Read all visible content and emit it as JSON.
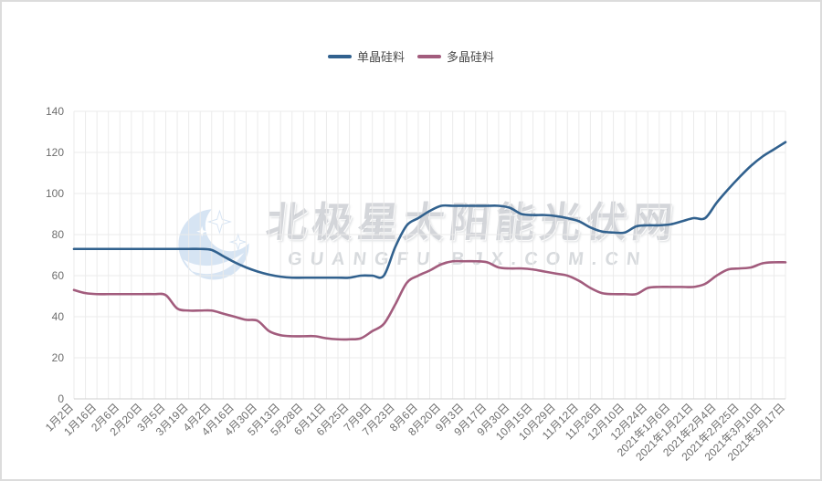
{
  "page": {
    "background": "#ffffff",
    "border_color": "#dcdcdc"
  },
  "legend": {
    "items": [
      {
        "label": "单晶硅料",
        "color": "#31618e"
      },
      {
        "label": "多晶硅料",
        "color": "#a25c7d"
      }
    ]
  },
  "watermark": {
    "title": "北极星太阳能光伏网",
    "subtitle": "GUANGFU.BJX.COM.CN",
    "logo_color": "#c9dbf0"
  },
  "chart_data": {
    "type": "line",
    "title": "",
    "xlabel": "",
    "ylabel": "",
    "ylim": [
      0,
      140
    ],
    "y_ticks": [
      0,
      20,
      40,
      60,
      80,
      100,
      120,
      140
    ],
    "grid": true,
    "legend_position": "top",
    "smooth": true,
    "x_point_count": 63,
    "label_indices_note": "visible x labels sit on every second data point (indices 0,2,4,...,62)",
    "categories": [
      "1月2日",
      "1月16日",
      "2月6日",
      "2月20日",
      "3月5日",
      "3月19日",
      "4月2日",
      "4月16日",
      "4月30日",
      "5月13日",
      "5月28日",
      "6月11日",
      "6月25日",
      "7月9日",
      "7月23日",
      "8月6日",
      "8月20日",
      "9月3日",
      "9月17日",
      "9月30日",
      "10月15日",
      "10月29日",
      "11月12日",
      "11月26日",
      "12月10日",
      "12月24日",
      "2021年1月6日",
      "2021年1月21日",
      "2021年2月4日",
      "2021年2月25日",
      "2021年3月10日",
      "2021年3月17日"
    ],
    "series": [
      {
        "name": "单晶硅料",
        "color": "#31618e",
        "values": [
          73,
          73,
          73,
          73,
          73,
          73,
          73,
          73,
          73,
          73,
          73,
          73,
          72.5,
          69.5,
          66.5,
          64,
          62,
          60.5,
          59.5,
          59,
          59,
          59,
          59,
          59,
          59,
          60,
          60,
          60,
          74,
          84.5,
          88,
          91.5,
          94,
          94,
          94,
          94,
          94,
          94,
          93,
          90,
          89.5,
          89.5,
          89,
          88,
          86.5,
          83.5,
          81.5,
          81,
          81,
          84,
          84.5,
          84.5,
          85,
          86.5,
          88,
          88,
          95.5,
          102,
          108,
          113.5,
          118,
          121.5,
          125
        ]
      },
      {
        "name": "多晶硅料",
        "color": "#a25c7d",
        "values": [
          53,
          51.5,
          51,
          51,
          51,
          51,
          51,
          51,
          50.5,
          44,
          43,
          43,
          43,
          41.5,
          40,
          38.5,
          38,
          33,
          31,
          30.5,
          30.5,
          30.5,
          29.5,
          29,
          29,
          29.5,
          33,
          36.5,
          46,
          56.5,
          60,
          62.5,
          65.5,
          67,
          67,
          67,
          66.5,
          64,
          63.5,
          63.5,
          63,
          62,
          61,
          60,
          57.5,
          54,
          51.5,
          51,
          51,
          51,
          54,
          54.5,
          54.5,
          54.5,
          54.5,
          56,
          60,
          63,
          63.5,
          64,
          66,
          66.5,
          66.5
        ]
      }
    ],
    "style": {
      "grid_color": "#ebebeb",
      "axis_line_color": "#cfcfcf",
      "tick_label_color": "#6e6e6e",
      "line_width": 2.6
    }
  }
}
